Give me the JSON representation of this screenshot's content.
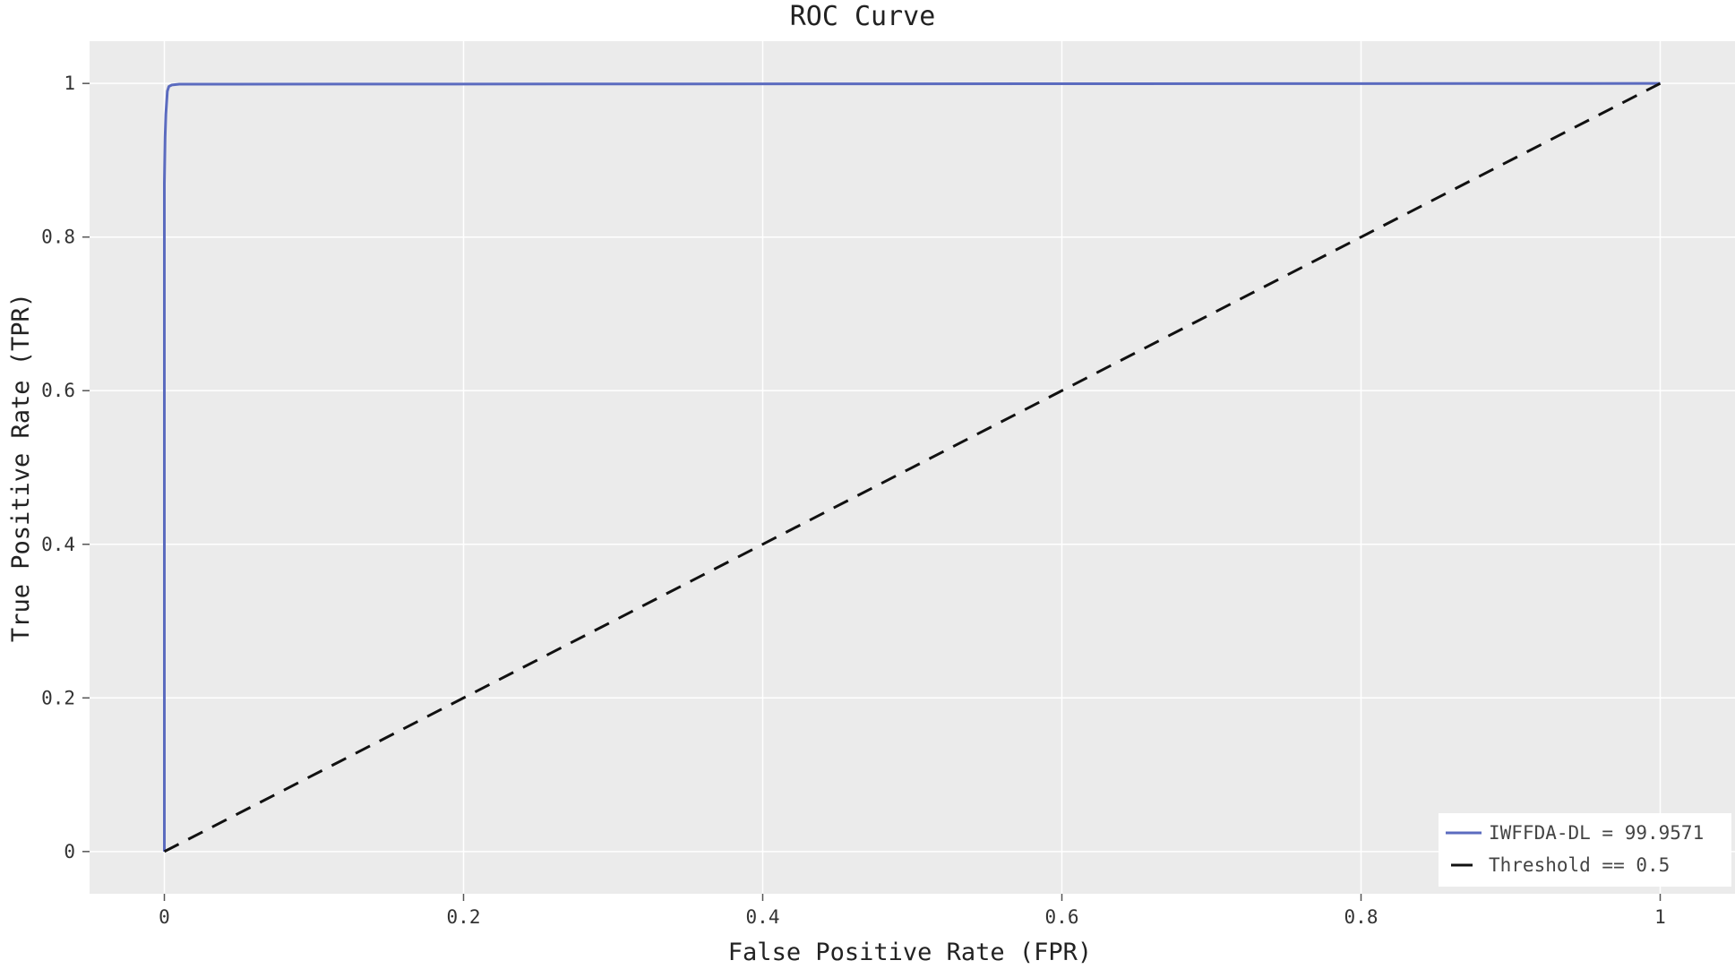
{
  "chart_data": {
    "type": "line",
    "title": "ROC Curve",
    "xlabel": "False Positive Rate (FPR)",
    "ylabel": "True Positive Rate (TPR)",
    "xlim": [
      -0.05,
      1.05
    ],
    "ylim": [
      -0.055,
      1.055
    ],
    "xticks": [
      0,
      0.2,
      0.4,
      0.6,
      0.8,
      1
    ],
    "xtick_labels": [
      "0",
      "0.2",
      "0.4",
      "0.6",
      "0.8",
      "1"
    ],
    "yticks": [
      0,
      0.2,
      0.4,
      0.6,
      0.8,
      1
    ],
    "ytick_labels": [
      "0",
      "0.2",
      "0.4",
      "0.6",
      "0.8",
      "1"
    ],
    "grid": true,
    "legend_position": "bottom-right",
    "background_color": "#ebebeb",
    "series": [
      {
        "name": "IWFFDA-DL = 99.9571",
        "color": "#5b6bbf",
        "dash": "solid",
        "x": [
          0,
          0,
          0.0005,
          0.001,
          0.002,
          0.003,
          0.005,
          0.01,
          1
        ],
        "y": [
          0,
          0.87,
          0.93,
          0.96,
          0.99,
          0.996,
          0.998,
          0.999,
          1
        ]
      },
      {
        "name": "Threshold == 0.5",
        "color": "#111111",
        "dash": "dashed",
        "x": [
          0,
          1
        ],
        "y": [
          0,
          1
        ]
      }
    ]
  }
}
